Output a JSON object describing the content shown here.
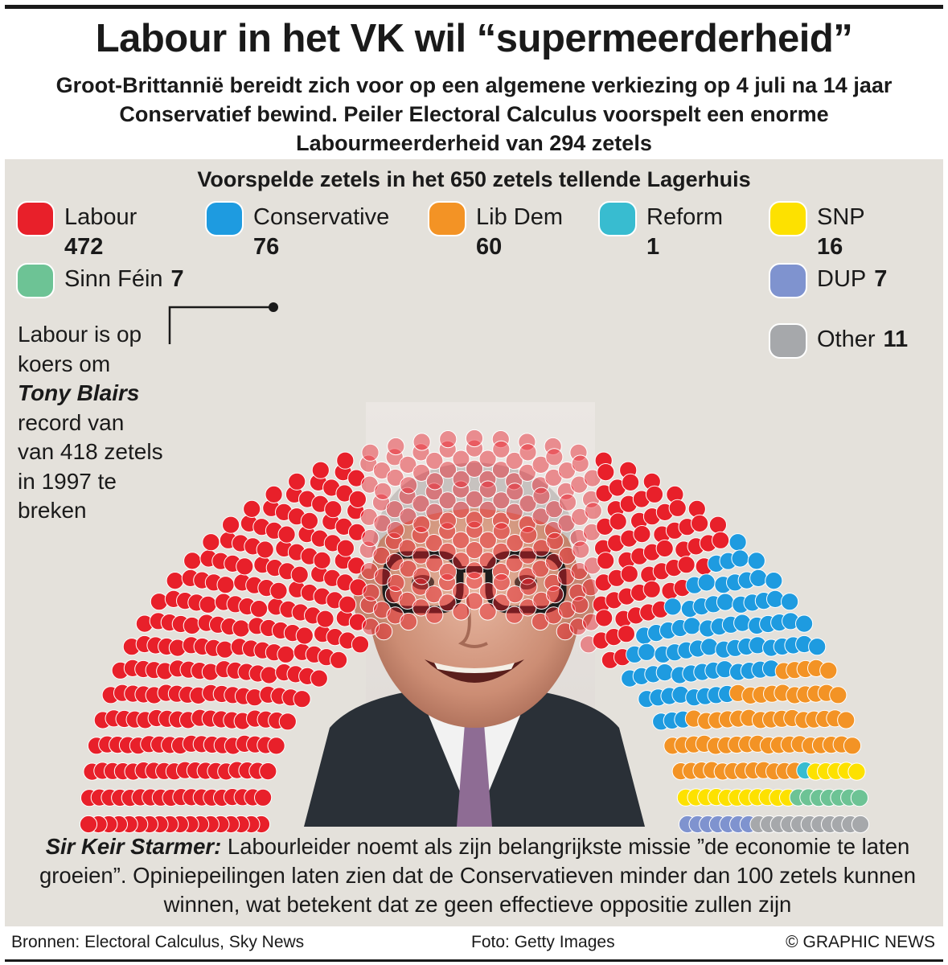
{
  "header": {
    "title": "Labour in het VK wil “supermeerderheid”",
    "subtitle": "Groot-Brittannië bereidt zich voor op een algemene verkiezing op 4 juli na 14 jaar Conservatief bewind. Peiler Electoral Calculus voorspelt een enorme Labourmeerderheid van 294 zetels"
  },
  "annotation": {
    "line1": "Labour is op koers om",
    "bold": "Tony Blairs",
    "line2": "record van van 418 zetels in 1997 te breken"
  },
  "caption": {
    "lead": "Sir Keir Starmer:",
    "text": " Labourleider noemt als zijn belangrijkste missie ”de economie te laten groeien”. Opiniepeilingen laten zien dat de Conservatieven minder dan 100 zetels kunnen winnen, wat betekent dat ze geen effectieve oppositie zullen zijn"
  },
  "footer": {
    "sources": "Bronnen: Electoral Calculus, Sky News",
    "photo": "Foto: Getty Images",
    "credit": "© GRAPHIC NEWS"
  },
  "chart_data": {
    "type": "parliament",
    "title": "Voorspelde zetels in het 650 zetels tellende Lagerhuis",
    "total_seats": 650,
    "series": [
      {
        "name": "Labour",
        "value": 472,
        "value_label": "472",
        "color": "#e8202a"
      },
      {
        "name": "Conservative",
        "value": 76,
        "value_label": "76",
        "color": "#1e9be0"
      },
      {
        "name": "Lib Dem",
        "value": 60,
        "value_label": "60",
        "color": "#f39325"
      },
      {
        "name": "Reform",
        "value": 1,
        "value_label": "1",
        "color": "#38bcd0"
      },
      {
        "name": "SNP",
        "value": 16,
        "value_label": "16",
        "color": "#fde100"
      },
      {
        "name": "Sinn Féin",
        "value": 7,
        "value_label": "7",
        "color": "#6dc395"
      },
      {
        "name": "DUP",
        "value": 7,
        "value_label": "7",
        "color": "#7f93cf"
      },
      {
        "name": "Other",
        "value": 11,
        "value_label": "11",
        "color": "#a6a8ab"
      }
    ]
  }
}
